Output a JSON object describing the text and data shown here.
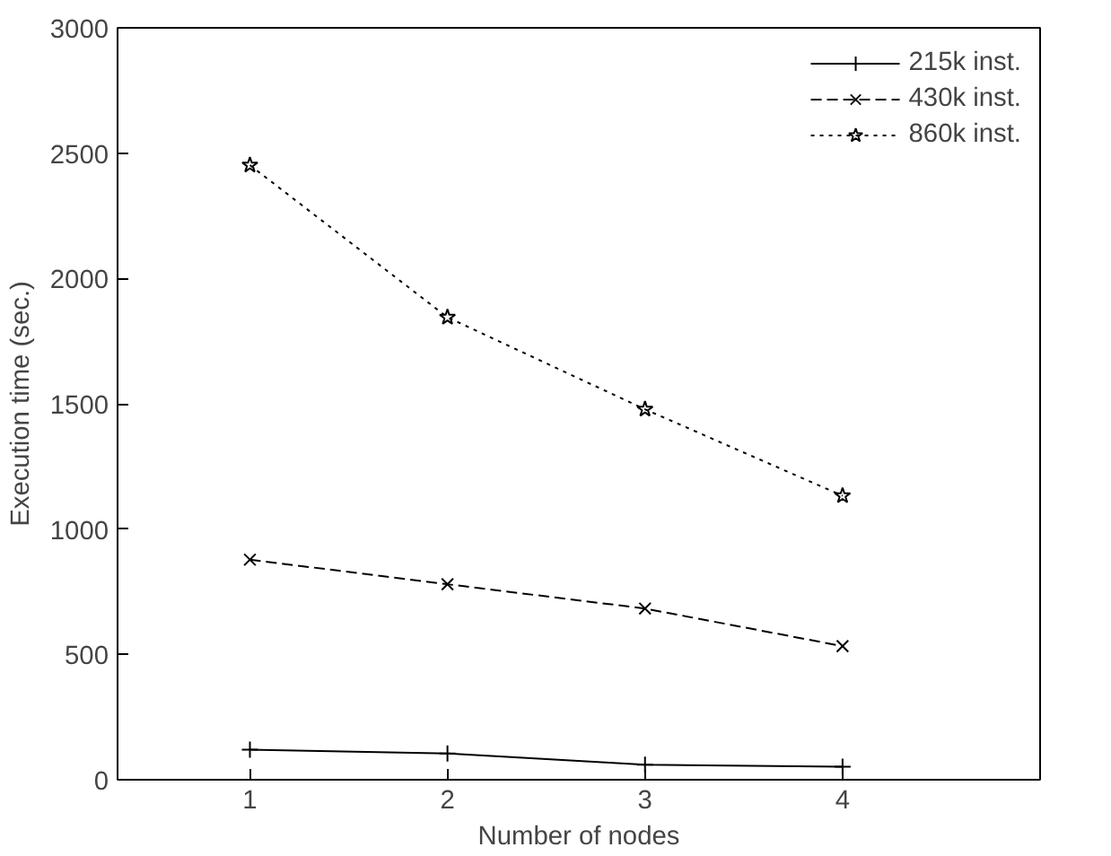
{
  "chart_data": {
    "type": "line",
    "xlabel": "Number of nodes",
    "ylabel": "Execution time (sec.)",
    "x": [
      1,
      2,
      3,
      4
    ],
    "series": [
      {
        "name": "215k inst.",
        "color": "#000000",
        "marker": "cross",
        "line_style": "solid",
        "values": [
          120,
          105,
          60,
          52
        ]
      },
      {
        "name": "430k inst.",
        "color": "#000000",
        "marker": "x",
        "line_style": "dashed",
        "values": [
          878,
          780,
          683,
          533
        ]
      },
      {
        "name": "860k inst.",
        "color": "#000000",
        "marker": "star",
        "line_style": "dotted",
        "values": [
          2452,
          1845,
          1478,
          1133
        ]
      }
    ],
    "xlim": [
      0.33,
      5
    ],
    "xticks": [
      1,
      2,
      3,
      4
    ],
    "ylim": [
      0,
      3000
    ],
    "yticks": [
      0,
      500,
      1000,
      1500,
      2000,
      2500,
      3000
    ],
    "grid": false,
    "legend": "top right"
  }
}
